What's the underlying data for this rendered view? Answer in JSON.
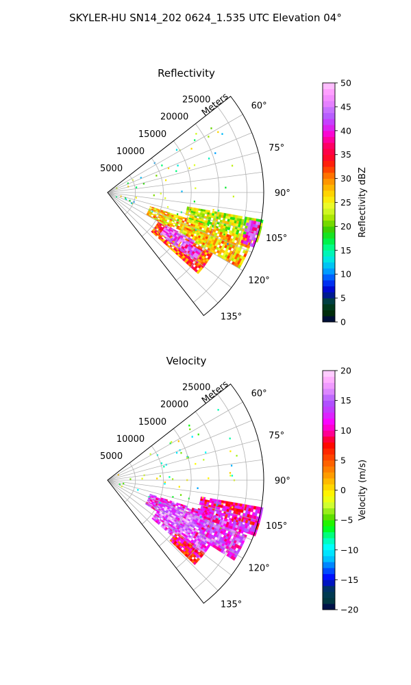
{
  "figure": {
    "suptitle": "SKYLER-HU  SN14_202  0624_1.535 UTC Elevation 04°"
  },
  "chart_data": [
    {
      "type": "heatmap",
      "subtype": "polar-sector-ppi",
      "title": "Reflectivity",
      "range_label": "Meters",
      "range_ticks": [
        "5000",
        "10000",
        "15000",
        "20000",
        "25000"
      ],
      "range_max": 28000,
      "azimuth_ticks": [
        "60°",
        "75°",
        "90°",
        "105°",
        "120°",
        "135°"
      ],
      "azimuth_range": [
        52,
        142
      ],
      "grid": true,
      "colorbar": {
        "label": "Reflectivity dBZ",
        "min": 0,
        "max": 50,
        "ticks": [
          "0",
          "5",
          "10",
          "15",
          "20",
          "25",
          "30",
          "35",
          "40",
          "45",
          "50"
        ]
      },
      "echo_regions": [
        {
          "azimuth": [
            100,
            108
          ],
          "range": [
            14500,
            28000
          ],
          "level": 23
        },
        {
          "azimuth": [
            108,
            120
          ],
          "range": [
            8000,
            27000
          ],
          "level": 27
        },
        {
          "azimuth": [
            120,
            131
          ],
          "range": [
            10500,
            21500
          ],
          "level": 32
        },
        {
          "azimuth": [
            101,
            110
          ],
          "range": [
            25500,
            28000
          ],
          "level": 41
        },
        {
          "azimuth": [
            119,
            128
          ],
          "range": [
            12000,
            17500
          ],
          "level": 44
        },
        {
          "azimuth": [
            122,
            127
          ],
          "range": [
            16500,
            19500
          ],
          "level": 42
        }
      ]
    },
    {
      "type": "heatmap",
      "subtype": "polar-sector-ppi",
      "title": "Velocity",
      "range_label": "Meters",
      "range_ticks": [
        "5000",
        "10000",
        "15000",
        "20000",
        "25000"
      ],
      "range_max": 28000,
      "azimuth_ticks": [
        "60°",
        "75°",
        "90°",
        "105°",
        "120°",
        "135°"
      ],
      "azimuth_range": [
        52,
        142
      ],
      "grid": true,
      "colorbar": {
        "label": "Velocity (m/s)",
        "min": -20,
        "max": 20,
        "ticks": [
          "−20",
          "−15",
          "−10",
          "−5",
          "0",
          "5",
          "10",
          "15",
          "20"
        ]
      },
      "echo_regions": [
        {
          "azimuth": [
            100,
            110
          ],
          "range": [
            17000,
            28000
          ],
          "level": 10
        },
        {
          "azimuth": [
            108,
            122
          ],
          "range": [
            8000,
            26500
          ],
          "level": 13
        },
        {
          "azimuth": [
            119,
            131
          ],
          "range": [
            10500,
            21500
          ],
          "level": 14
        },
        {
          "azimuth": [
            112,
            124
          ],
          "range": [
            11000,
            17500
          ],
          "level": 16
        },
        {
          "azimuth": [
            127,
            133
          ],
          "range": [
            15500,
            21500
          ],
          "level": 8
        }
      ]
    }
  ],
  "colors": {
    "reflectivity_stops": [
      "#00004d",
      "#003300",
      "#004040",
      "#0000c8",
      "#0040ff",
      "#00a8ff",
      "#00e5e5",
      "#00ff99",
      "#00ee33",
      "#44cc00",
      "#a6e600",
      "#e6ff33",
      "#ffe600",
      "#ffb300",
      "#ff7a00",
      "#ff2a00",
      "#ff0033",
      "#ff0066",
      "#ff00cc",
      "#cc33ff",
      "#b366ff",
      "#e680ff",
      "#ff99ff",
      "#ffccff"
    ],
    "velocity_stops": [
      "#00004d",
      "#004040",
      "#003366",
      "#0000ff",
      "#0066ff",
      "#00ccff",
      "#00ffff",
      "#00ff99",
      "#00ff00",
      "#66dd00",
      "#ccff33",
      "#ffff00",
      "#ffcc00",
      "#ff9900",
      "#ff6600",
      "#ff3300",
      "#ff0000",
      "#ff0099",
      "#ff00ff",
      "#cc33ff",
      "#aa55ff",
      "#dd88ff",
      "#ffaaff",
      "#ffdaff"
    ]
  }
}
